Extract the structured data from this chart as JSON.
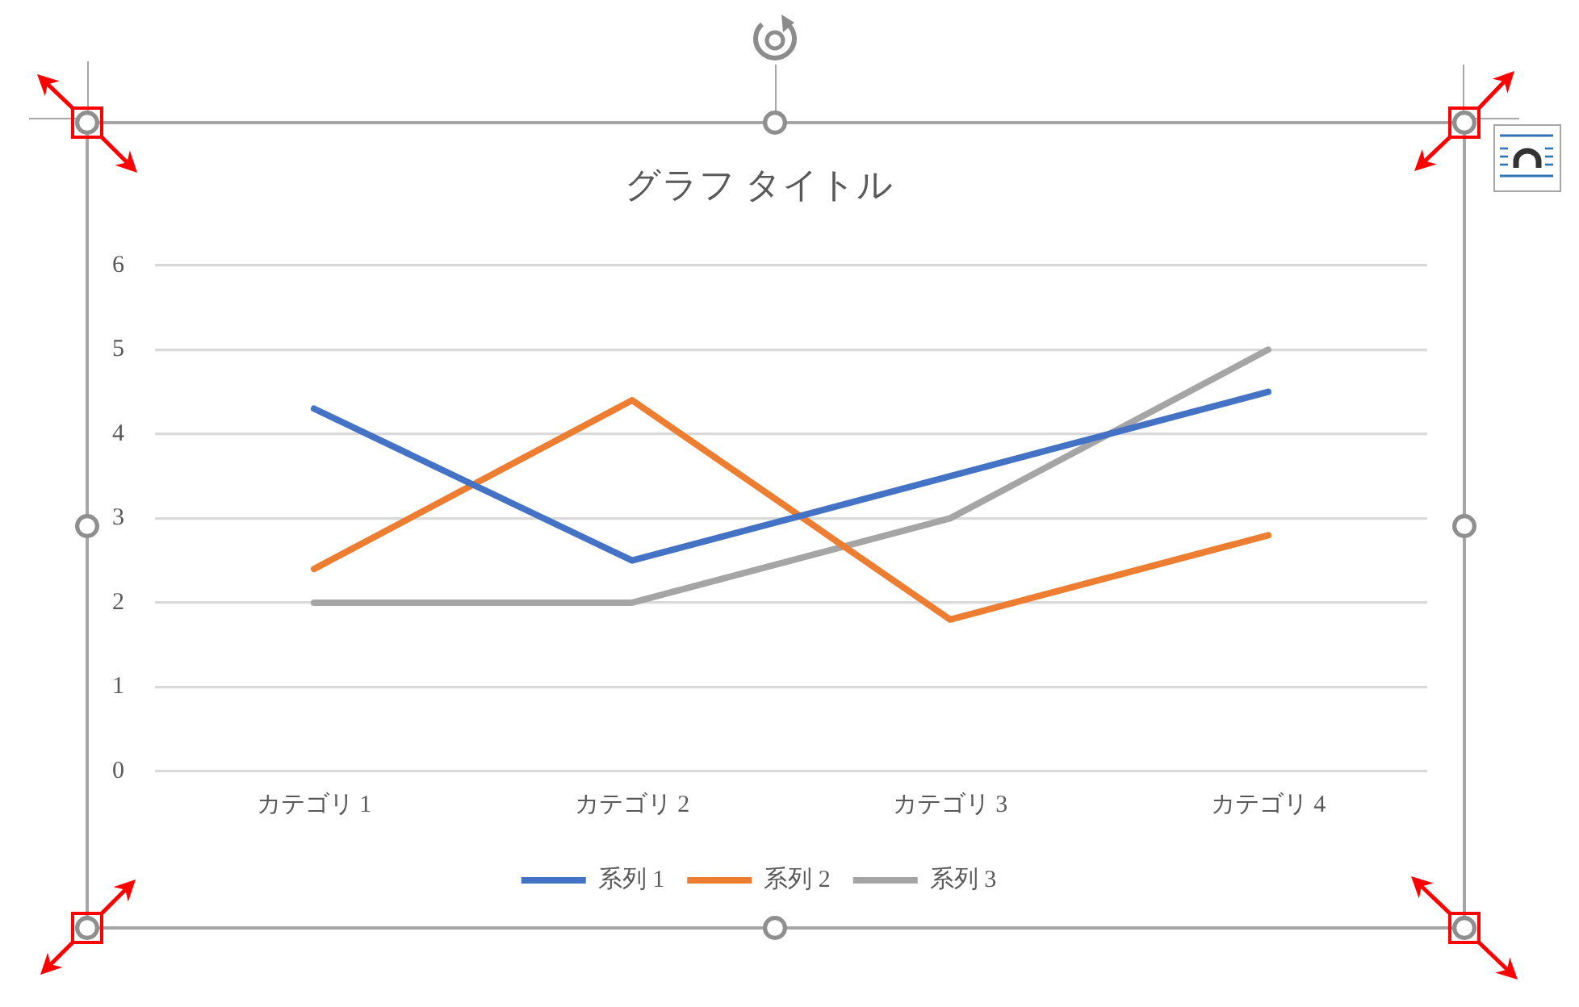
{
  "chart_data": {
    "type": "line",
    "title": "グラフ タイトル",
    "categories": [
      "カテゴリ 1",
      "カテゴリ 2",
      "カテゴリ 3",
      "カテゴリ 4"
    ],
    "series": [
      {
        "name": "系列 1",
        "color": "#4472c4",
        "values": [
          4.3,
          2.5,
          3.5,
          4.5
        ]
      },
      {
        "name": "系列 2",
        "color": "#ed7d31",
        "values": [
          2.4,
          4.4,
          1.8,
          2.8
        ]
      },
      {
        "name": "系列 3",
        "color": "#a5a5a5",
        "values": [
          2,
          2,
          3,
          5
        ]
      }
    ],
    "ylim": [
      0,
      6
    ],
    "yticks": [
      0,
      1,
      2,
      3,
      4,
      5,
      6
    ],
    "grid": "y",
    "legend": "bottom",
    "marker": "none",
    "line_style": "solid"
  }
}
